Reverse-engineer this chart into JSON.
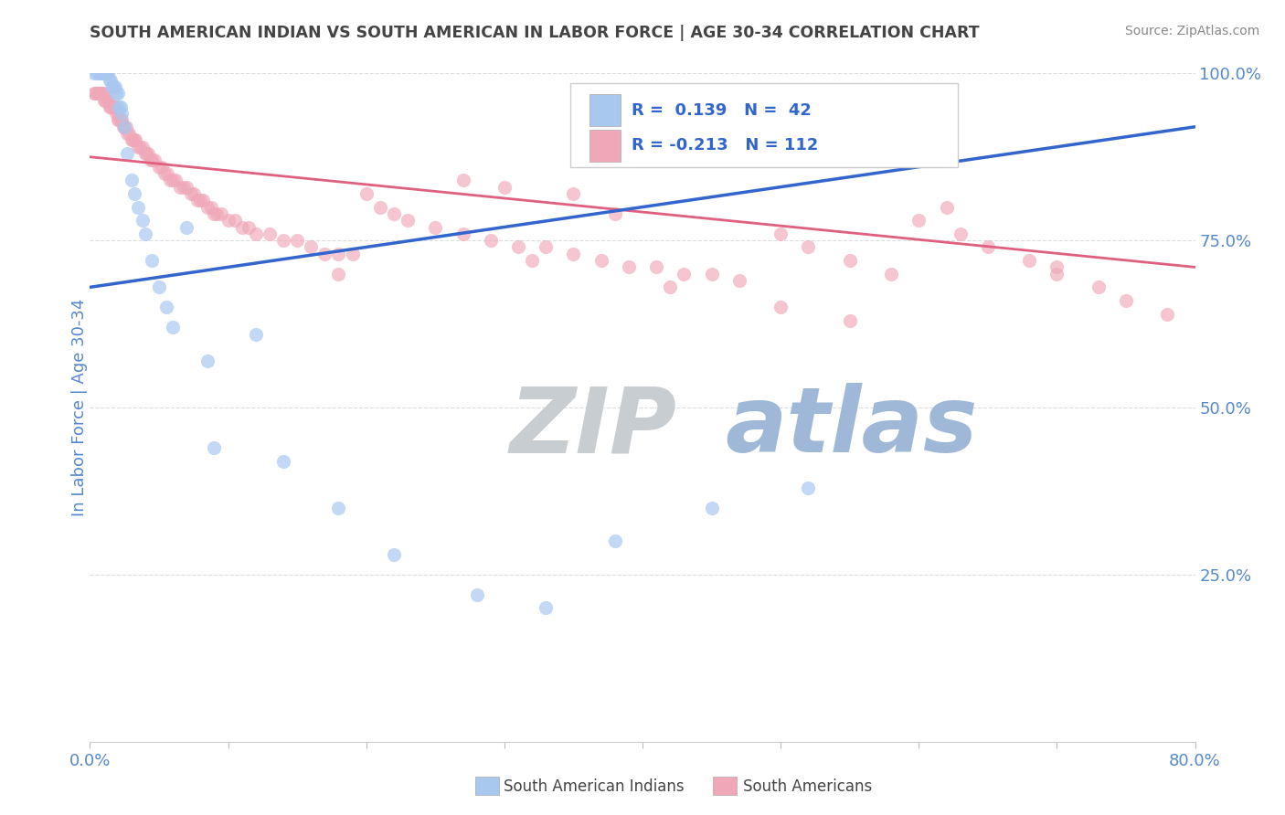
{
  "title": "SOUTH AMERICAN INDIAN VS SOUTH AMERICAN IN LABOR FORCE | AGE 30-34 CORRELATION CHART",
  "source_text": "Source: ZipAtlas.com",
  "ylabel": "In Labor Force | Age 30-34",
  "xlim": [
    0.0,
    0.8
  ],
  "ylim": [
    0.0,
    1.0
  ],
  "x_ticks": [
    0.0,
    0.1,
    0.2,
    0.3,
    0.4,
    0.5,
    0.6,
    0.7,
    0.8
  ],
  "y_ticks_right": [
    0.0,
    0.25,
    0.5,
    0.75,
    1.0
  ],
  "blue_color": "#A8C8F0",
  "pink_color": "#F0A8B8",
  "blue_line_color": "#3366CC",
  "pink_line_color": "#E06080",
  "watermark_zip_color": "#C8CDD2",
  "watermark_atlas_color": "#A0B8D8",
  "grid_color": "#DDDDDD",
  "title_color": "#444444",
  "axis_label_color": "#5588CC",
  "source_color": "#888888",
  "blue_line_x0": 0.0,
  "blue_line_y0": 0.68,
  "blue_line_x1": 0.8,
  "blue_line_y1": 0.92,
  "pink_line_x0": 0.0,
  "pink_line_y0": 0.875,
  "pink_line_x1": 0.8,
  "pink_line_y1": 0.71,
  "blue_pts_x": [
    0.003,
    0.005,
    0.007,
    0.008,
    0.009,
    0.01,
    0.01,
    0.012,
    0.013,
    0.014,
    0.015,
    0.016,
    0.017,
    0.018,
    0.019,
    0.02,
    0.021,
    0.022,
    0.023,
    0.025,
    0.027,
    0.03,
    0.032,
    0.035,
    0.038,
    0.04,
    0.045,
    0.05,
    0.055,
    0.06,
    0.07,
    0.085,
    0.09,
    0.12,
    0.14,
    0.18,
    0.22,
    0.28,
    0.33,
    0.38,
    0.45,
    0.52
  ],
  "blue_pts_y": [
    1.0,
    1.0,
    1.0,
    1.0,
    1.0,
    1.0,
    1.0,
    1.0,
    1.0,
    0.99,
    0.99,
    0.98,
    0.98,
    0.98,
    0.97,
    0.97,
    0.95,
    0.95,
    0.94,
    0.92,
    0.88,
    0.84,
    0.82,
    0.8,
    0.78,
    0.76,
    0.72,
    0.68,
    0.65,
    0.62,
    0.77,
    0.57,
    0.44,
    0.61,
    0.42,
    0.35,
    0.28,
    0.22,
    0.2,
    0.3,
    0.35,
    0.38
  ],
  "pink_pts_x": [
    0.003,
    0.004,
    0.005,
    0.006,
    0.007,
    0.008,
    0.009,
    0.01,
    0.01,
    0.011,
    0.012,
    0.013,
    0.014,
    0.015,
    0.016,
    0.017,
    0.018,
    0.019,
    0.02,
    0.02,
    0.021,
    0.022,
    0.023,
    0.024,
    0.025,
    0.026,
    0.027,
    0.028,
    0.03,
    0.031,
    0.032,
    0.033,
    0.035,
    0.036,
    0.038,
    0.04,
    0.041,
    0.042,
    0.044,
    0.045,
    0.047,
    0.05,
    0.052,
    0.054,
    0.056,
    0.058,
    0.06,
    0.062,
    0.065,
    0.068,
    0.07,
    0.073,
    0.075,
    0.078,
    0.08,
    0.082,
    0.085,
    0.088,
    0.09,
    0.092,
    0.095,
    0.1,
    0.105,
    0.11,
    0.115,
    0.12,
    0.13,
    0.14,
    0.15,
    0.16,
    0.17,
    0.18,
    0.19,
    0.2,
    0.21,
    0.22,
    0.23,
    0.25,
    0.27,
    0.29,
    0.31,
    0.33,
    0.35,
    0.37,
    0.39,
    0.41,
    0.43,
    0.45,
    0.47,
    0.5,
    0.52,
    0.55,
    0.58,
    0.6,
    0.63,
    0.65,
    0.68,
    0.7,
    0.73,
    0.75,
    0.78,
    0.5,
    0.55,
    0.38,
    0.42,
    0.62,
    0.7,
    0.3,
    0.35,
    0.27,
    0.32,
    0.18
  ],
  "pink_pts_y": [
    0.97,
    0.97,
    0.97,
    0.97,
    0.97,
    0.97,
    0.97,
    0.97,
    0.96,
    0.96,
    0.96,
    0.96,
    0.95,
    0.95,
    0.95,
    0.95,
    0.95,
    0.94,
    0.94,
    0.93,
    0.93,
    0.93,
    0.93,
    0.92,
    0.92,
    0.92,
    0.91,
    0.91,
    0.9,
    0.9,
    0.9,
    0.9,
    0.89,
    0.89,
    0.89,
    0.88,
    0.88,
    0.88,
    0.87,
    0.87,
    0.87,
    0.86,
    0.86,
    0.85,
    0.85,
    0.84,
    0.84,
    0.84,
    0.83,
    0.83,
    0.83,
    0.82,
    0.82,
    0.81,
    0.81,
    0.81,
    0.8,
    0.8,
    0.79,
    0.79,
    0.79,
    0.78,
    0.78,
    0.77,
    0.77,
    0.76,
    0.76,
    0.75,
    0.75,
    0.74,
    0.73,
    0.73,
    0.73,
    0.82,
    0.8,
    0.79,
    0.78,
    0.77,
    0.76,
    0.75,
    0.74,
    0.74,
    0.73,
    0.72,
    0.71,
    0.71,
    0.7,
    0.7,
    0.69,
    0.76,
    0.74,
    0.72,
    0.7,
    0.78,
    0.76,
    0.74,
    0.72,
    0.7,
    0.68,
    0.66,
    0.64,
    0.65,
    0.63,
    0.79,
    0.68,
    0.8,
    0.71,
    0.83,
    0.82,
    0.84,
    0.72,
    0.7
  ]
}
